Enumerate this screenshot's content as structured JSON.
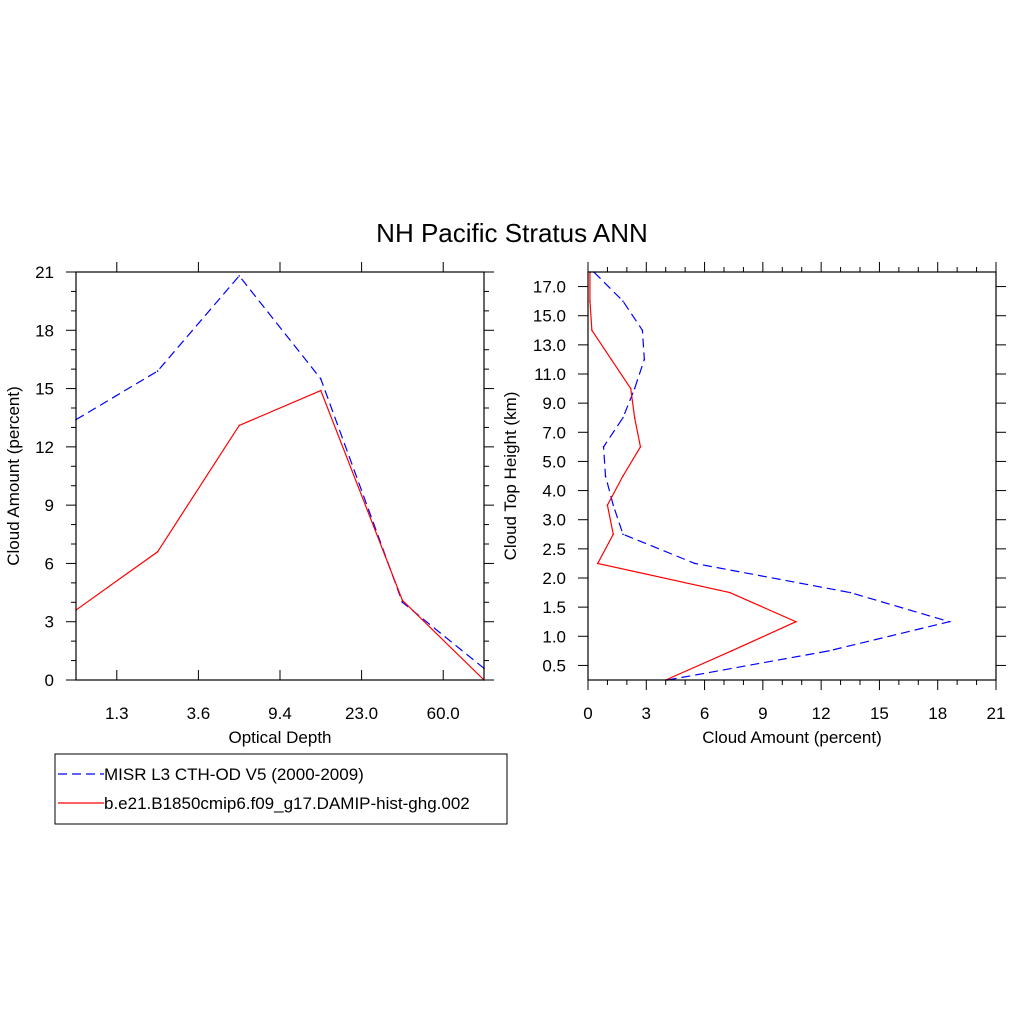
{
  "title": "NH Pacific Stratus ANN",
  "colors": {
    "misr": "#0000ff",
    "model": "#ff0000",
    "axis": "#000000"
  },
  "legend": {
    "entries": [
      {
        "label": "MISR L3 CTH-OD V5 (2000-2009)",
        "color": "#0000ff",
        "style": "dashed"
      },
      {
        "label": "b.e21.B1850cmip6.f09_g17.DAMIP-hist-ghg.002",
        "color": "#ff0000",
        "style": "solid"
      }
    ]
  },
  "chart_data": [
    {
      "type": "line",
      "xlabel": "Optical Depth",
      "ylabel": "Cloud Amount (percent)",
      "x_tick_labels": [
        "1.3",
        "3.6",
        "9.4",
        "23.0",
        "60.0"
      ],
      "x_tick_positions": [
        0.5,
        1.5,
        2.5,
        3.5,
        4.5
      ],
      "xlim": [
        0,
        5
      ],
      "y_ticks": [
        0,
        3,
        6,
        9,
        12,
        15,
        18,
        21
      ],
      "ylim": [
        0,
        21
      ],
      "x": [
        0,
        1,
        2,
        3,
        4,
        5
      ],
      "series": [
        {
          "name": "MISR L3 CTH-OD V5 (2000-2009)",
          "values": [
            13.4,
            15.9,
            20.8,
            15.5,
            4.0,
            0.6
          ]
        },
        {
          "name": "b.e21.B1850cmip6.f09_g17.DAMIP-hist-ghg.002",
          "values": [
            3.6,
            6.6,
            13.1,
            14.9,
            4.1,
            0.0
          ]
        }
      ]
    },
    {
      "type": "line",
      "xlabel": "Cloud Amount (percent)",
      "ylabel": "Cloud Top Height (km)",
      "x_ticks": [
        0,
        3,
        6,
        9,
        12,
        15,
        18,
        21
      ],
      "xlim": [
        0,
        21
      ],
      "y_tick_labels": [
        "0.5",
        "1.0",
        "1.5",
        "2.0",
        "2.5",
        "3.0",
        "4.0",
        "5.0",
        "7.0",
        "9.0",
        "11.0",
        "13.0",
        "15.0",
        "17.0"
      ],
      "y_tick_positions": [
        0.5,
        1.5,
        2.5,
        3.5,
        4.5,
        5.5,
        6.5,
        7.5,
        8.5,
        9.5,
        10.5,
        11.5,
        12.5,
        13.5
      ],
      "ylim": [
        0,
        14
      ],
      "y": [
        0,
        1,
        2,
        3,
        4,
        5,
        6,
        7,
        8,
        9,
        10,
        11,
        12,
        13,
        14
      ],
      "series": [
        {
          "name": "MISR L3 CTH-OD V5 (2000-2009)",
          "values": [
            4.1,
            12.4,
            18.6,
            13.5,
            5.5,
            1.8,
            1.3,
            0.9,
            0.8,
            1.8,
            2.4,
            2.9,
            2.8,
            1.8,
            0.3
          ]
        },
        {
          "name": "b.e21.B1850cmip6.f09_g17.DAMIP-hist-ghg.002",
          "values": [
            4.0,
            7.4,
            10.7,
            7.3,
            0.5,
            1.3,
            1.0,
            1.8,
            2.7,
            2.4,
            2.2,
            1.2,
            0.2,
            0.1,
            0.1
          ]
        }
      ]
    }
  ]
}
